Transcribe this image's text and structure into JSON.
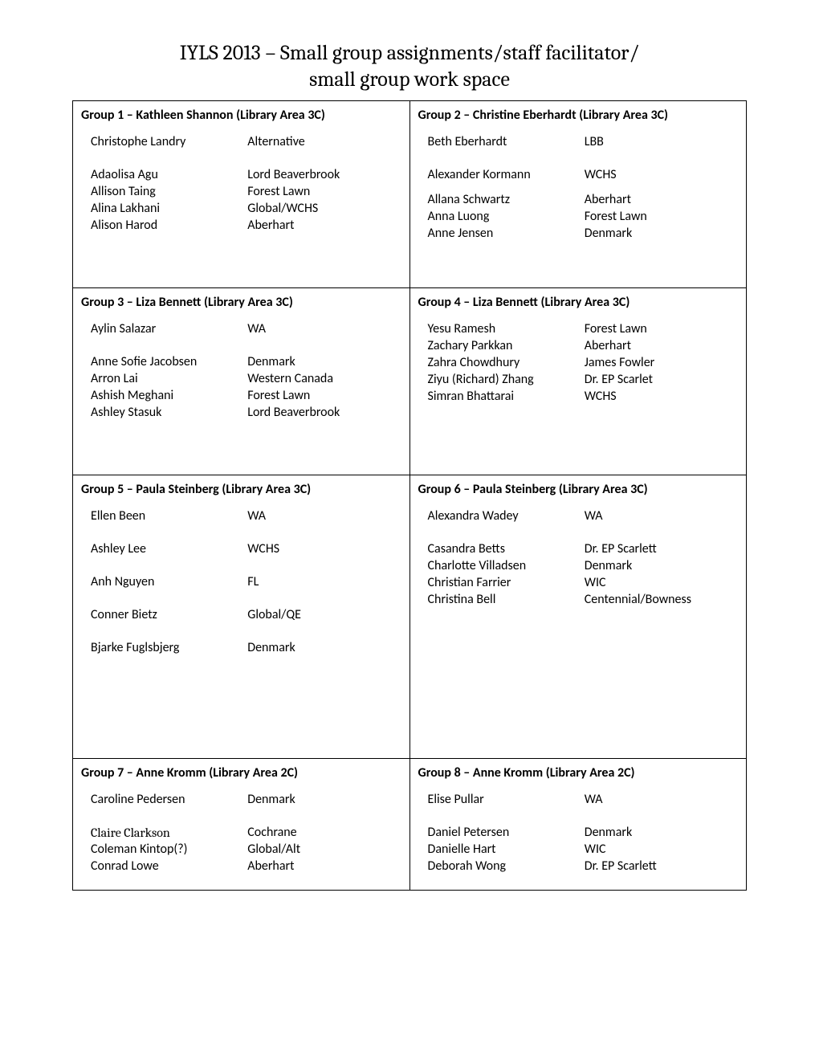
{
  "title_line1": "IYLS 2013 – Small group assignments/staff facilitator/",
  "title_line2": "small group work space",
  "groups": [
    {
      "header": "Group 1 – Kathleen Shannon  (Library Area 3C)",
      "members": [
        {
          "name": "Christophe Landry",
          "loc": "Alternative",
          "gap_after": true
        },
        {
          "name": "Adaolisa Agu",
          "loc": "Lord Beaverbrook"
        },
        {
          "name": "Allison Taing",
          "loc": "Forest Lawn"
        },
        {
          "name": "Alina Lakhani",
          "loc": "Global/WCHS"
        },
        {
          "name": "Alison Harod",
          "loc": "Aberhart"
        }
      ]
    },
    {
      "header": "Group 2 – Christine Eberhardt (Library Area 3C)",
      "members": [
        {
          "name": "Beth Eberhardt",
          "loc": "LBB",
          "gap_after": true
        },
        {
          "name": "Alexander Kormann",
          "loc": "WCHS",
          "gap_after_med": true
        },
        {
          "name": "Allana Schwartz",
          "loc": "Aberhart"
        },
        {
          "name": "Anna Luong",
          "loc": "Forest Lawn"
        },
        {
          "name": "Anne Jensen",
          "loc": "Denmark"
        }
      ]
    },
    {
      "header": "Group 3 – Liza Bennett (Library Area 3C)",
      "members": [
        {
          "name": "Aylin Salazar",
          "loc": "WA",
          "gap_after": true
        },
        {
          "name": "Anne Sofie Jacobsen",
          "loc": "Denmark"
        },
        {
          "name": "Arron Lai",
          "loc": "Western Canada"
        },
        {
          "name": "Ashish Meghani",
          "loc": "Forest Lawn"
        },
        {
          "name": "Ashley Stasuk",
          "loc": "Lord Beaverbrook"
        }
      ]
    },
    {
      "header": "Group 4 – Liza Bennett (Library Area 3C)",
      "members": [
        {
          "name": "Yesu Ramesh",
          "loc": "Forest Lawn"
        },
        {
          "name": "Zachary Parkkan",
          "loc": "Aberhart"
        },
        {
          "name": "Zahra Chowdhury",
          "loc": "James Fowler"
        },
        {
          "name": "Ziyu (Richard) Zhang",
          "loc": "Dr. EP Scarlet"
        },
        {
          "name": "Simran Bhattarai",
          "loc": "WCHS"
        }
      ]
    },
    {
      "header": "Group 5 – Paula Steinberg (Library Area 3C)",
      "members": [
        {
          "name": "Ellen Been",
          "loc": "WA",
          "gap_after": true
        },
        {
          "name": "Ashley Lee",
          "loc": "WCHS",
          "gap_after": true
        },
        {
          "name": "Anh Nguyen",
          "loc": "FL",
          "gap_after": true
        },
        {
          "name": "Conner Bietz",
          "loc": "Global/QE",
          "gap_after": true
        },
        {
          "name": "Bjarke Fuglsbjerg",
          "loc": "Denmark"
        }
      ]
    },
    {
      "header": "Group 6 – Paula Steinberg (Library Area 3C)",
      "members": [
        {
          "name": "Alexandra Wadey",
          "loc": "WA",
          "gap_after": true
        },
        {
          "name": "Casandra Betts",
          "loc": "Dr. EP Scarlett"
        },
        {
          "name": "Charlotte Villadsen",
          "loc": "Denmark"
        },
        {
          "name": "Christian Farrier",
          "loc": "WIC"
        },
        {
          "name": "Christina Bell",
          "loc": "Centennial/Bowness"
        }
      ]
    },
    {
      "header": "Group 7 – Anne Kromm (Library Area 2C)",
      "members": [
        {
          "name": "Caroline Pedersen",
          "loc": "Denmark",
          "gap_after": true
        },
        {
          "name": "Claire Clarkson",
          "loc": "Cochrane",
          "cambria": true
        },
        {
          "name": "Coleman Kintop(?)",
          "loc": "Global/Alt"
        },
        {
          "name": "Conrad Lowe",
          "loc": "Aberhart"
        }
      ]
    },
    {
      "header": "Group 8 – Anne Kromm  (Library Area 2C)",
      "members": [
        {
          "name": "Elise Pullar",
          "loc": "WA",
          "gap_after": true
        },
        {
          "name": "Daniel Petersen",
          "loc": "Denmark"
        },
        {
          "name": "Danielle Hart",
          "loc": "WIC"
        },
        {
          "name": "Deborah Wong",
          "loc": "Dr. EP Scarlett"
        }
      ]
    }
  ]
}
